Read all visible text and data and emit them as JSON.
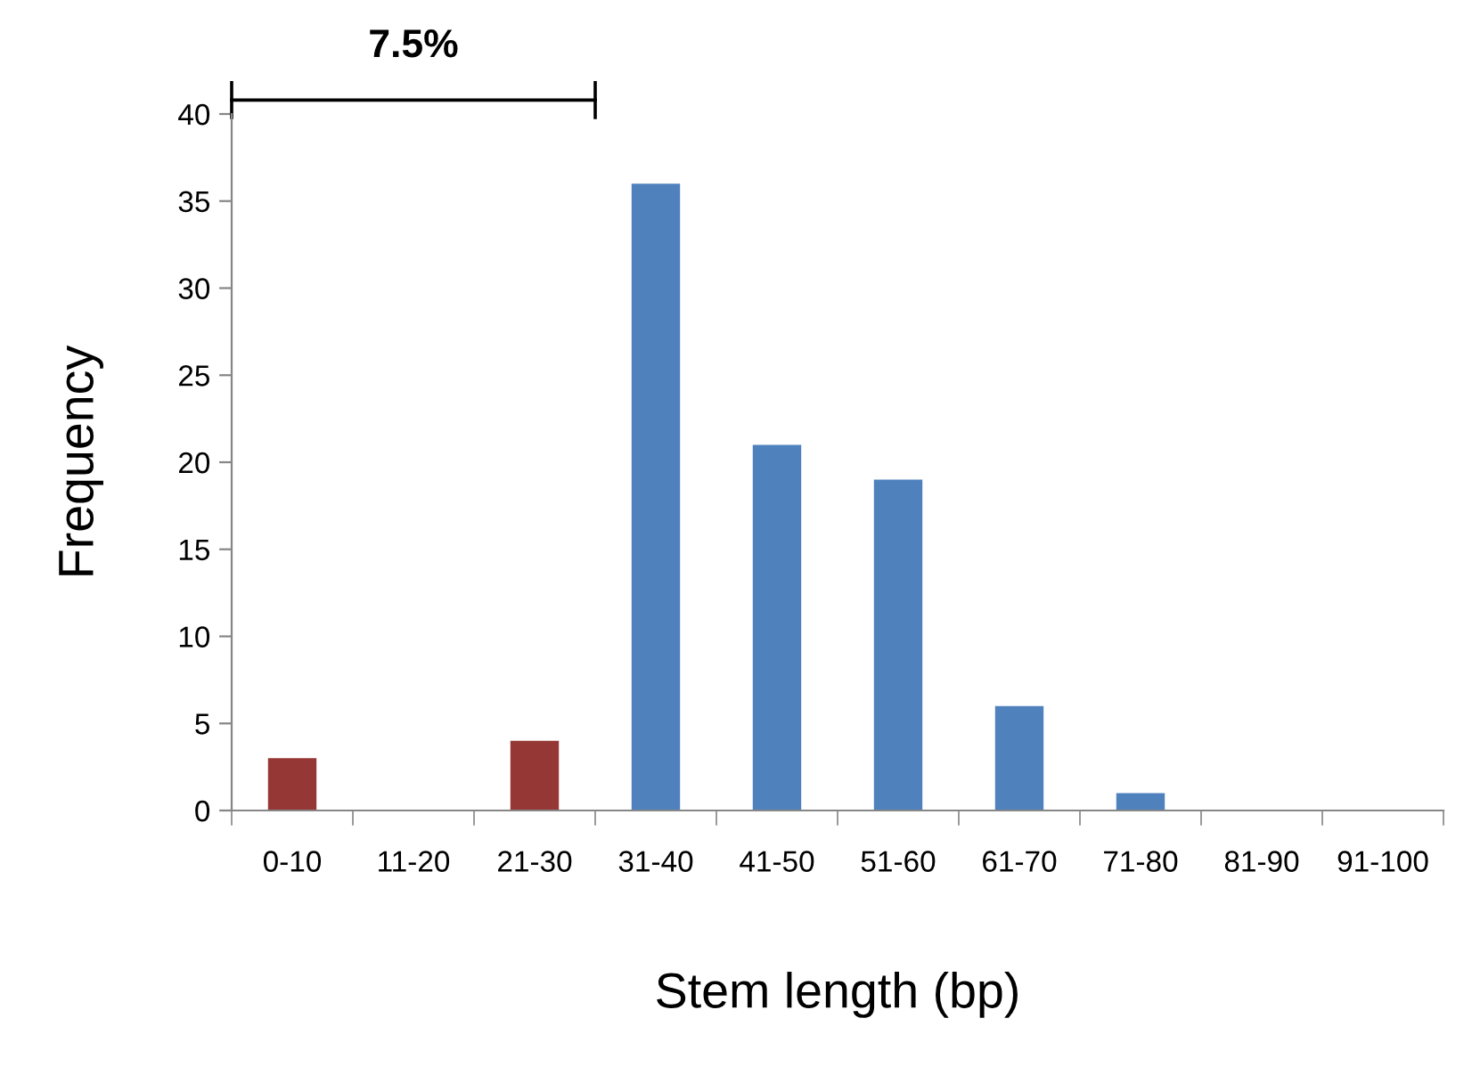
{
  "chart_data": {
    "type": "bar",
    "categories": [
      "0-10",
      "11-20",
      "21-30",
      "31-40",
      "41-50",
      "51-60",
      "61-70",
      "71-80",
      "81-90",
      "91-100"
    ],
    "values": [
      3,
      0,
      4,
      36,
      21,
      19,
      6,
      1,
      0,
      0
    ],
    "colors": [
      "#953735",
      "#953735",
      "#953735",
      "#4f81bd",
      "#4f81bd",
      "#4f81bd",
      "#4f81bd",
      "#4f81bd",
      "#4f81bd",
      "#4f81bd"
    ],
    "xlabel": "Stem length (bp)",
    "ylabel": "Frequency",
    "ylim": [
      0,
      40
    ],
    "yticks": [
      0,
      5,
      10,
      15,
      20,
      25,
      30,
      35,
      40
    ],
    "annotations": [
      "7.5%"
    ],
    "grid": false,
    "legend": false
  }
}
